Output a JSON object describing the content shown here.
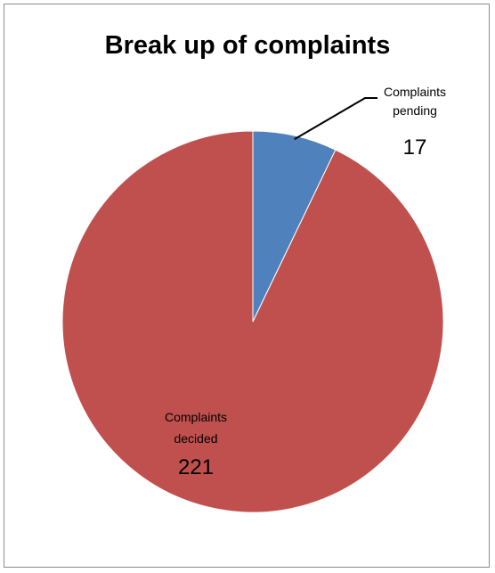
{
  "chart_data": {
    "type": "pie",
    "title": "Break up of complaints",
    "slices": [
      {
        "name_lines": [
          "Complaints",
          "pending"
        ],
        "value": "17",
        "amount": 17,
        "color": "#4f81bd"
      },
      {
        "name_lines": [
          "Complaints",
          "decided"
        ],
        "value": "221",
        "amount": 221,
        "color": "#c0504d"
      }
    ],
    "start_angle_deg": 0,
    "direction": "clockwise",
    "slice_border_color": "#ffffff",
    "leader_line_color": "#000000",
    "legend": "none"
  }
}
